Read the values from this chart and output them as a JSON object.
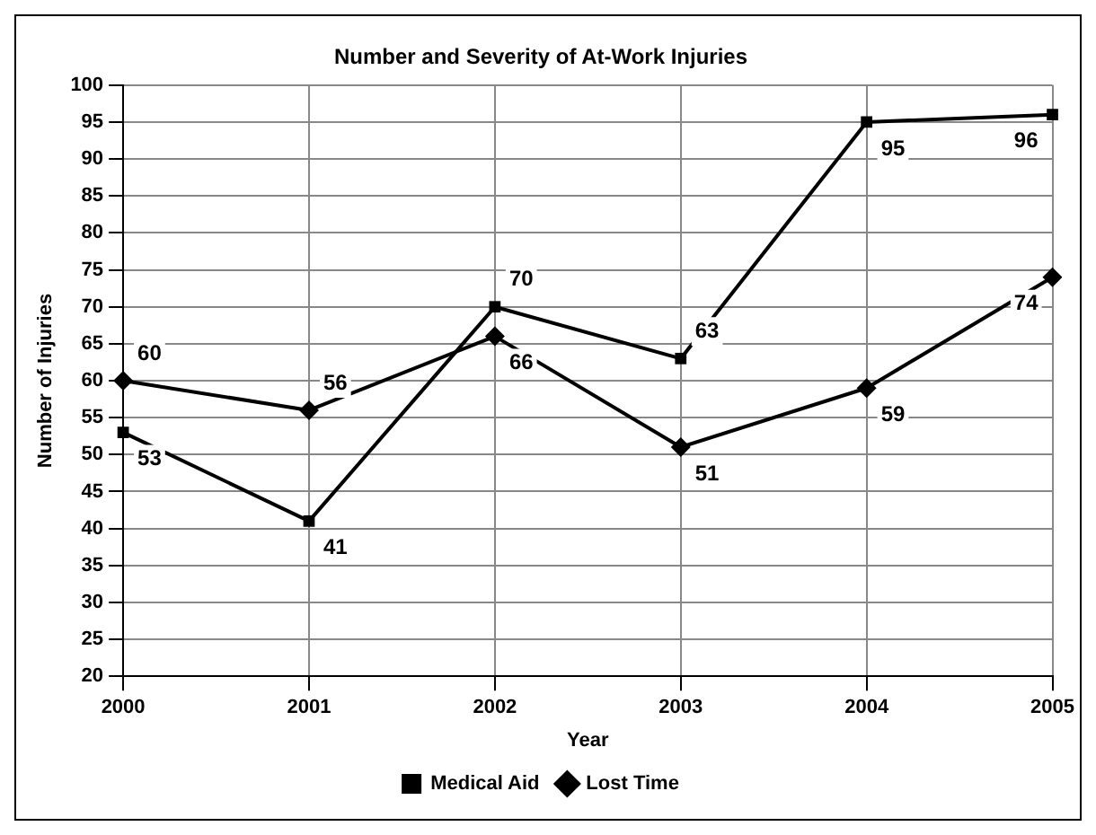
{
  "chart_data": {
    "type": "line",
    "title": "Number and Severity of At-Work Injuries",
    "xlabel": "Year",
    "ylabel": "Number of Injuries",
    "categories": [
      "2000",
      "2001",
      "2002",
      "2003",
      "2004",
      "2005"
    ],
    "series": [
      {
        "name": "Medical Aid",
        "color": "#000000",
        "marker": "square",
        "values": [
          53,
          41,
          70,
          63,
          95,
          96
        ]
      },
      {
        "name": "Lost Time",
        "color": "#000000",
        "marker": "diamond",
        "values": [
          60,
          56,
          66,
          51,
          59,
          74
        ]
      }
    ],
    "ylim": [
      20,
      100
    ],
    "yticks": [
      20,
      25,
      30,
      35,
      40,
      45,
      50,
      55,
      60,
      65,
      70,
      75,
      80,
      85,
      90,
      95,
      100
    ],
    "grid": true,
    "legend": "bottom",
    "data_labels": true,
    "line_style": "solid"
  }
}
